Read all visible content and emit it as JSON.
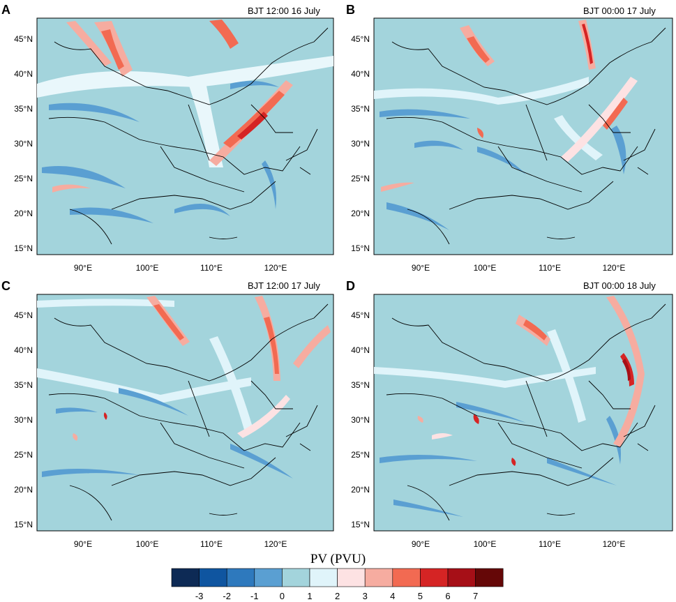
{
  "colors": {
    "background_field": "#a3d4dc",
    "levels": [
      "#0d2a55",
      "#0f55a0",
      "#2e79bd",
      "#5a9fd2",
      "#a3d4dc",
      "#e0f4fa",
      "#fde2e3",
      "#f6aca0",
      "#f26a52",
      "#d52424",
      "#a60f17",
      "#650707"
    ]
  },
  "panels": [
    {
      "label": "A",
      "title": "BJT 12:00 16 July"
    },
    {
      "label": "B",
      "title": "BJT 00:00 17 July"
    },
    {
      "label": "C",
      "title": "BJT 12:00 17 July"
    },
    {
      "label": "D",
      "title": "BJT 00:00 18 July"
    }
  ],
  "axes": {
    "lat_labels": [
      "45°N",
      "40°N",
      "35°N",
      "30°N",
      "25°N",
      "20°N",
      "15°N"
    ],
    "lon_labels": [
      "90°E",
      "100°E",
      "110°E",
      "120°E"
    ]
  },
  "colorbar": {
    "title": "PV (PVU)",
    "ticks": [
      "-3",
      "-2",
      "-1",
      "0",
      "1",
      "2",
      "3",
      "4",
      "5",
      "6",
      "7"
    ]
  }
}
